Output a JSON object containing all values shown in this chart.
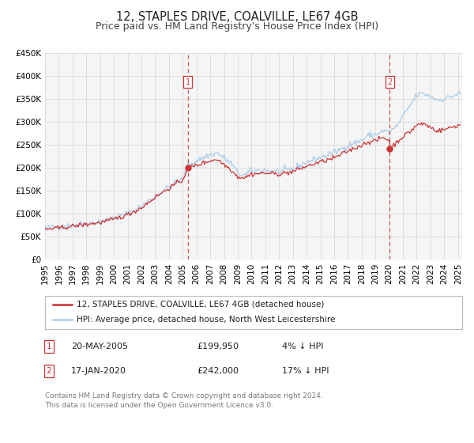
{
  "title": "12, STAPLES DRIVE, COALVILLE, LE67 4GB",
  "subtitle": "Price paid vs. HM Land Registry's House Price Index (HPI)",
  "ylim": [
    0,
    450000
  ],
  "yticks": [
    0,
    50000,
    100000,
    150000,
    200000,
    250000,
    300000,
    350000,
    400000,
    450000
  ],
  "ytick_labels": [
    "£0",
    "£50K",
    "£100K",
    "£150K",
    "£200K",
    "£250K",
    "£300K",
    "£350K",
    "£400K",
    "£450K"
  ],
  "xlim_start": 1995.0,
  "xlim_end": 2025.3,
  "hpi_color": "#aacce8",
  "price_color": "#cc3333",
  "annotation_color": "#cc3333",
  "grid_color": "#dddddd",
  "background_color": "#ffffff",
  "plot_bg_color": "#f5f5f5",
  "marker1_date": 2005.38,
  "marker1_price": 199950,
  "marker1_label": "20-MAY-2005",
  "marker1_amount": "£199,950",
  "marker1_hpi": "4% ↓ HPI",
  "marker2_date": 2020.04,
  "marker2_price": 242000,
  "marker2_label": "17-JAN-2020",
  "marker2_amount": "£242,000",
  "marker2_hpi": "17% ↓ HPI",
  "legend_label1": "12, STAPLES DRIVE, COALVILLE, LE67 4GB (detached house)",
  "legend_label2": "HPI: Average price, detached house, North West Leicestershire",
  "footnote": "Contains HM Land Registry data © Crown copyright and database right 2024.\nThis data is licensed under the Open Government Licence v3.0.",
  "title_fontsize": 10.5,
  "subtitle_fontsize": 9,
  "tick_fontsize": 7.5,
  "legend_fontsize": 8
}
